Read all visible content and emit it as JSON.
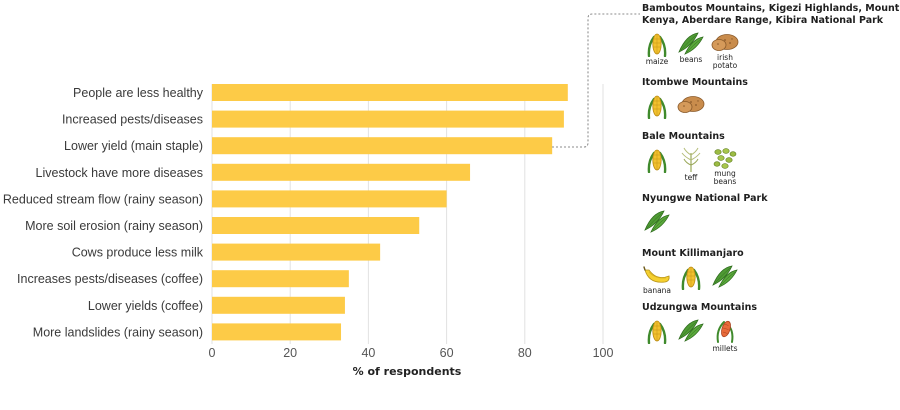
{
  "chart_data": {
    "type": "bar",
    "orientation": "horizontal",
    "categories": [
      "People are less healthy",
      "Increased pests/diseases",
      "Lower yield (main staple)",
      "Livestock have more diseases",
      "Reduced stream flow (rainy season)",
      "More soil erosion (rainy season)",
      "Cows produce less milk",
      "Increases pests/diseases (coffee)",
      "Lower yields (coffee)",
      "More landslides (rainy season)"
    ],
    "values": [
      91,
      90,
      87,
      66,
      60,
      53,
      43,
      35,
      34,
      33
    ],
    "xlabel": "% of respondents",
    "xlim": [
      0,
      100
    ],
    "xticks": [
      "0",
      "20",
      "40",
      "60",
      "80",
      "100"
    ],
    "bar_color": "#FDCB47",
    "grid": "vertical"
  },
  "regions": [
    {
      "name": "Bamboutos Mountains, Kigezi Highlands, Mount Kenya, Aberdare Range, Kibira National Park",
      "crops": [
        {
          "icon": "maize-icon",
          "label": "maize"
        },
        {
          "icon": "beans-icon",
          "label": "beans"
        },
        {
          "icon": "potato-icon",
          "label": "irish potato"
        }
      ]
    },
    {
      "name": "Itombwe Mountains",
      "crops": [
        {
          "icon": "maize-icon",
          "label": ""
        },
        {
          "icon": "potato-icon",
          "label": ""
        }
      ]
    },
    {
      "name": "Bale Mountains",
      "crops": [
        {
          "icon": "maize-icon",
          "label": ""
        },
        {
          "icon": "teff-icon",
          "label": "teff"
        },
        {
          "icon": "mung-beans-icon",
          "label": "mung beans"
        }
      ]
    },
    {
      "name": "Nyungwe National Park",
      "crops": [
        {
          "icon": "beans-icon",
          "label": ""
        }
      ]
    },
    {
      "name": "Mount Killimanjaro",
      "crops": [
        {
          "icon": "banana-icon",
          "label": "banana"
        },
        {
          "icon": "maize-icon",
          "label": ""
        },
        {
          "icon": "beans-icon",
          "label": ""
        }
      ]
    },
    {
      "name": "Udzungwa Mountains",
      "crops": [
        {
          "icon": "maize-icon",
          "label": ""
        },
        {
          "icon": "beans-icon",
          "label": ""
        },
        {
          "icon": "millet-icon",
          "label": "millets"
        }
      ]
    }
  ]
}
